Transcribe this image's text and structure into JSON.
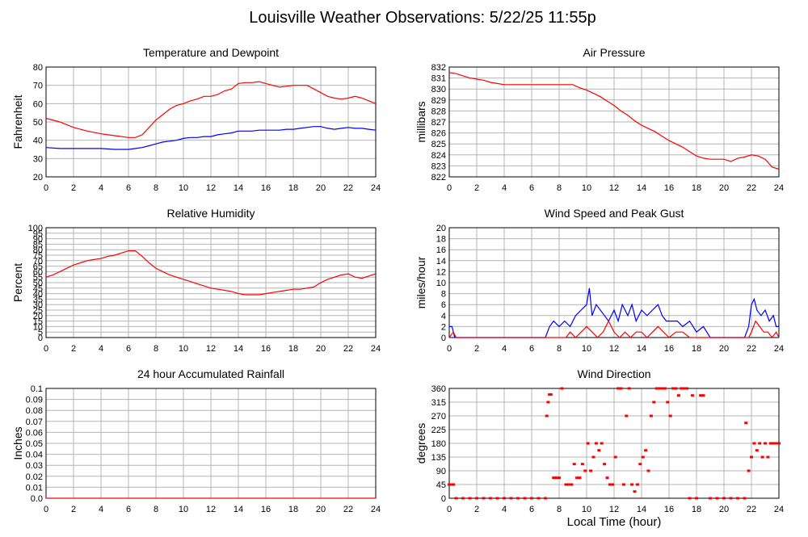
{
  "title": "Louisville Weather Observations: 5/22/25 11:55p",
  "x_axis_label": "Local Time (hour)",
  "colors": {
    "red": "#ff0000",
    "blue": "#0000ff",
    "grid": "#b4b4b4",
    "frame": "#000000"
  },
  "chart_data": [
    {
      "id": "temp",
      "type": "line",
      "title": "Temperature and Dewpoint",
      "ylabel": "Fahrenheit",
      "xlabel": "",
      "xlim": [
        0,
        24
      ],
      "ylim": [
        20,
        80
      ],
      "x_ticks": [
        0,
        2,
        4,
        6,
        8,
        10,
        12,
        14,
        16,
        18,
        20,
        22,
        24
      ],
      "y_ticks": [
        20,
        30,
        40,
        50,
        60,
        70,
        80
      ],
      "series": [
        {
          "color": "#ff0000",
          "x": [
            0,
            1,
            2,
            3,
            4,
            5,
            6,
            6.5,
            7,
            7.5,
            8,
            8.5,
            9,
            9.5,
            10,
            10.5,
            11,
            11.5,
            12,
            12.5,
            13,
            13.5,
            14,
            14.5,
            15,
            15.5,
            16,
            16.5,
            17,
            17.5,
            18,
            18.5,
            19,
            19.5,
            20,
            20.5,
            21,
            21.5,
            22,
            22.5,
            23,
            23.5,
            24
          ],
          "y": [
            52,
            50,
            47,
            45,
            43.5,
            42.5,
            41.5,
            41.5,
            43,
            47,
            51,
            54,
            57,
            59,
            60,
            61.5,
            62.5,
            64,
            64,
            65,
            67,
            68,
            71,
            71.5,
            71.5,
            72,
            71,
            70,
            69,
            69.5,
            70,
            70,
            70,
            68,
            66,
            64,
            63,
            62.5,
            63,
            64,
            63,
            61.5,
            60
          ]
        },
        {
          "color": "#0000ff",
          "x": [
            0,
            1,
            2,
            3,
            4,
            5,
            6,
            6.5,
            7,
            7.5,
            8,
            8.5,
            9,
            9.5,
            10,
            10.5,
            11,
            11.5,
            12,
            12.5,
            13,
            13.5,
            14,
            14.5,
            15,
            15.5,
            16,
            16.5,
            17,
            17.5,
            18,
            18.5,
            19,
            19.5,
            20,
            20.5,
            21,
            21.5,
            22,
            22.5,
            23,
            23.5,
            24
          ],
          "y": [
            36,
            35.5,
            35.5,
            35.5,
            35.5,
            35,
            35,
            35.5,
            36,
            37,
            38,
            39,
            39.5,
            40,
            41,
            41.5,
            41.5,
            42,
            42,
            43,
            43.5,
            44,
            45,
            45,
            45,
            45.5,
            45.5,
            45.5,
            45.5,
            46,
            46,
            46.5,
            47,
            47.5,
            47.5,
            46.5,
            46,
            46.5,
            47,
            46.5,
            46.5,
            46,
            45.5
          ]
        }
      ]
    },
    {
      "id": "pressure",
      "type": "line",
      "title": "Air Pressure",
      "ylabel": "millibars",
      "xlabel": "",
      "xlim": [
        0,
        24
      ],
      "ylim": [
        822,
        832
      ],
      "x_ticks": [
        0,
        2,
        4,
        6,
        8,
        10,
        12,
        14,
        16,
        18,
        20,
        22,
        24
      ],
      "y_ticks": [
        822,
        823,
        824,
        825,
        826,
        827,
        828,
        829,
        830,
        831,
        832
      ],
      "series": [
        {
          "color": "#ff0000",
          "x": [
            0,
            0.5,
            1,
            1.5,
            2,
            2.5,
            3,
            3.5,
            4,
            5,
            6,
            7,
            8,
            9,
            9.5,
            10,
            10.5,
            11,
            11.5,
            12,
            12.5,
            13,
            13.5,
            14,
            14.5,
            15,
            15.5,
            16,
            16.5,
            17,
            17.5,
            18,
            18.5,
            19,
            19.5,
            20,
            20.5,
            21,
            21.5,
            22,
            22.5,
            23,
            23.5,
            24
          ],
          "y": [
            831.5,
            831.4,
            831.2,
            831,
            830.9,
            830.8,
            830.6,
            830.5,
            830.4,
            830.4,
            830.4,
            830.4,
            830.4,
            830.4,
            830.1,
            829.9,
            829.6,
            829.3,
            828.9,
            828.5,
            828,
            827.6,
            827.1,
            826.7,
            826.4,
            826.1,
            825.7,
            825.3,
            825,
            824.7,
            824.3,
            823.9,
            823.7,
            823.6,
            823.6,
            823.6,
            823.4,
            823.7,
            823.8,
            824,
            823.9,
            823.6,
            822.9,
            822.7
          ]
        }
      ]
    },
    {
      "id": "humidity",
      "type": "line",
      "title": "Relative Humidity",
      "ylabel": "Percent",
      "xlabel": "",
      "xlim": [
        0,
        24
      ],
      "ylim": [
        0,
        100
      ],
      "x_ticks": [
        0,
        2,
        4,
        6,
        8,
        10,
        12,
        14,
        16,
        18,
        20,
        22,
        24
      ],
      "y_ticks": [
        0,
        5,
        10,
        15,
        20,
        25,
        30,
        35,
        40,
        45,
        50,
        55,
        60,
        65,
        70,
        75,
        80,
        85,
        90,
        95,
        100
      ],
      "series": [
        {
          "color": "#ff0000",
          "x": [
            0,
            0.5,
            1,
            1.5,
            2,
            2.5,
            3,
            3.5,
            4,
            4.5,
            5,
            5.5,
            6,
            6.5,
            7,
            7.5,
            8,
            8.5,
            9,
            9.5,
            10,
            10.5,
            11,
            11.5,
            12,
            12.5,
            13,
            13.5,
            14,
            14.5,
            15,
            15.5,
            16,
            16.5,
            17,
            17.5,
            18,
            18.5,
            19,
            19.5,
            20,
            20.5,
            21,
            21.5,
            22,
            22.5,
            23,
            23.5,
            24
          ],
          "y": [
            55,
            57,
            60,
            63,
            66,
            68,
            70,
            71,
            72,
            74,
            75,
            77,
            79,
            79,
            74,
            68,
            63,
            60,
            57,
            55,
            53,
            51,
            49,
            47,
            45,
            44,
            43,
            42,
            40,
            39,
            39,
            39,
            40,
            41,
            42,
            43,
            44,
            44,
            45,
            46,
            50,
            53,
            55,
            57,
            58,
            55,
            54,
            56,
            58
          ]
        }
      ]
    },
    {
      "id": "wind",
      "type": "line",
      "title": "Wind Speed and Peak Gust",
      "ylabel": "miles/hour",
      "xlabel": "",
      "xlim": [
        0,
        24
      ],
      "ylim": [
        0,
        20
      ],
      "x_ticks": [
        0,
        2,
        4,
        6,
        8,
        10,
        12,
        14,
        16,
        18,
        20,
        22,
        24
      ],
      "y_ticks": [
        0,
        2,
        4,
        6,
        8,
        10,
        12,
        14,
        16,
        18,
        20
      ],
      "series": [
        {
          "color": "#0000ff",
          "x": [
            0,
            0.2,
            0.4,
            0.6,
            7,
            7.3,
            7.6,
            8,
            8.4,
            8.8,
            9.2,
            9.6,
            10,
            10.2,
            10.4,
            10.7,
            11,
            11.3,
            11.6,
            12,
            12.3,
            12.6,
            13,
            13.3,
            13.6,
            14,
            14.4,
            14.8,
            15.2,
            15.5,
            15.8,
            16.2,
            16.6,
            17,
            17.5,
            18,
            18.5,
            19,
            21.5,
            21.8,
            22,
            22.2,
            22.4,
            22.7,
            23,
            23.3,
            23.6,
            23.8,
            24
          ],
          "y": [
            2,
            2,
            0,
            0,
            0,
            2,
            3,
            2,
            3,
            2,
            4,
            5,
            6,
            9,
            4,
            6,
            5,
            4,
            3,
            5,
            3,
            6,
            4,
            6,
            3,
            5,
            4,
            5,
            6,
            4,
            3,
            3,
            3,
            2,
            3,
            1,
            2,
            0,
            0,
            2,
            6,
            7,
            5,
            4,
            5,
            3,
            4,
            2,
            2
          ]
        },
        {
          "color": "#ff0000",
          "x": [
            0,
            0.3,
            0.5,
            8.5,
            8.8,
            9.2,
            9.6,
            10,
            10.4,
            10.8,
            11.2,
            11.6,
            12,
            12.4,
            12.8,
            13.2,
            13.6,
            14,
            14.4,
            14.8,
            15.2,
            15.6,
            16,
            16.5,
            17,
            17.5,
            21.8,
            22,
            22.3,
            22.6,
            22.9,
            23.2,
            23.5,
            23.8,
            24
          ],
          "y": [
            0,
            1,
            0,
            0,
            1,
            0,
            1,
            2,
            1,
            0,
            1,
            3,
            1,
            0,
            1,
            0,
            1,
            1,
            0,
            1,
            2,
            1,
            0,
            1,
            1,
            0,
            0,
            1,
            3,
            2,
            1,
            1,
            0,
            1,
            0
          ]
        }
      ]
    },
    {
      "id": "rain",
      "type": "line",
      "title": "24 hour Accumulated Rainfall",
      "ylabel": "Inches",
      "xlabel": "",
      "xlim": [
        0,
        24
      ],
      "ylim": [
        0,
        0.1
      ],
      "x_ticks": [
        0,
        2,
        4,
        6,
        8,
        10,
        12,
        14,
        16,
        18,
        20,
        22,
        24
      ],
      "y_ticks": [
        0.0,
        0.01,
        0.02,
        0.03,
        0.04,
        0.05,
        0.06,
        0.07,
        0.08,
        0.09,
        0.1
      ],
      "y_tick_labels": [
        "0.0",
        "0.01",
        "0.02",
        "0.03",
        "0.04",
        "0.05",
        "0.06",
        "0.07",
        "0.08",
        "0.09",
        "0.1"
      ],
      "series": [
        {
          "color": "#ff0000",
          "x": [
            0,
            24
          ],
          "y": [
            0,
            0
          ]
        }
      ]
    },
    {
      "id": "direction",
      "type": "scatter",
      "title": "Wind Direction",
      "ylabel": "degrees",
      "xlabel": "Local Time (hour)",
      "xlim": [
        0,
        24
      ],
      "ylim": [
        0,
        360
      ],
      "x_ticks": [
        0,
        2,
        4,
        6,
        8,
        10,
        12,
        14,
        16,
        18,
        20,
        22,
        24
      ],
      "y_ticks": [
        0,
        45,
        90,
        135,
        180,
        225,
        270,
        315,
        360
      ],
      "series": [
        {
          "color": "#ff0000",
          "x": [
            0,
            0.1,
            0.2,
            0.3,
            0.5,
            1,
            1.5,
            2,
            2.5,
            3,
            3.5,
            4,
            4.5,
            5,
            5.5,
            6,
            6.5,
            7,
            7.1,
            7.2,
            7.3,
            7.4,
            7.6,
            7.8,
            8,
            8.2,
            8.5,
            8.7,
            8.9,
            9.1,
            9.3,
            9.5,
            9.7,
            9.9,
            10.1,
            10.3,
            10.5,
            10.7,
            10.9,
            11.1,
            11.3,
            11.5,
            11.7,
            11.9,
            12.1,
            12.3,
            12.5,
            12.7,
            12.9,
            13.1,
            13.3,
            13.5,
            13.7,
            13.9,
            14.1,
            14.3,
            14.5,
            14.7,
            14.9,
            15.1,
            15.3,
            15.5,
            15.7,
            15.9,
            16.1,
            16.3,
            16.5,
            16.7,
            16.9,
            17.1,
            17.3,
            17.5,
            17.7,
            18,
            18.3,
            18.5,
            19,
            19.5,
            20,
            20.5,
            21,
            21.5,
            21.6,
            21.8,
            22,
            22.2,
            22.4,
            22.6,
            22.8,
            23,
            23.2,
            23.4,
            23.6,
            23.8,
            24
          ],
          "y": [
            45,
            45,
            45,
            45,
            0,
            0,
            0,
            0,
            0,
            0,
            0,
            0,
            0,
            0,
            0,
            0,
            0,
            0,
            270,
            315,
            340,
            340,
            67,
            67,
            67,
            360,
            45,
            45,
            45,
            112,
            67,
            67,
            112,
            90,
            180,
            90,
            135,
            180,
            157,
            180,
            112,
            67,
            45,
            45,
            135,
            360,
            360,
            45,
            270,
            360,
            45,
            22,
            45,
            112,
            135,
            157,
            90,
            270,
            315,
            360,
            360,
            360,
            360,
            315,
            270,
            360,
            360,
            337,
            360,
            360,
            360,
            0,
            337,
            0,
            337,
            337,
            0,
            0,
            0,
            0,
            0,
            0,
            247,
            90,
            135,
            180,
            157,
            180,
            135,
            180,
            135,
            180,
            180,
            180,
            180
          ]
        }
      ]
    }
  ]
}
